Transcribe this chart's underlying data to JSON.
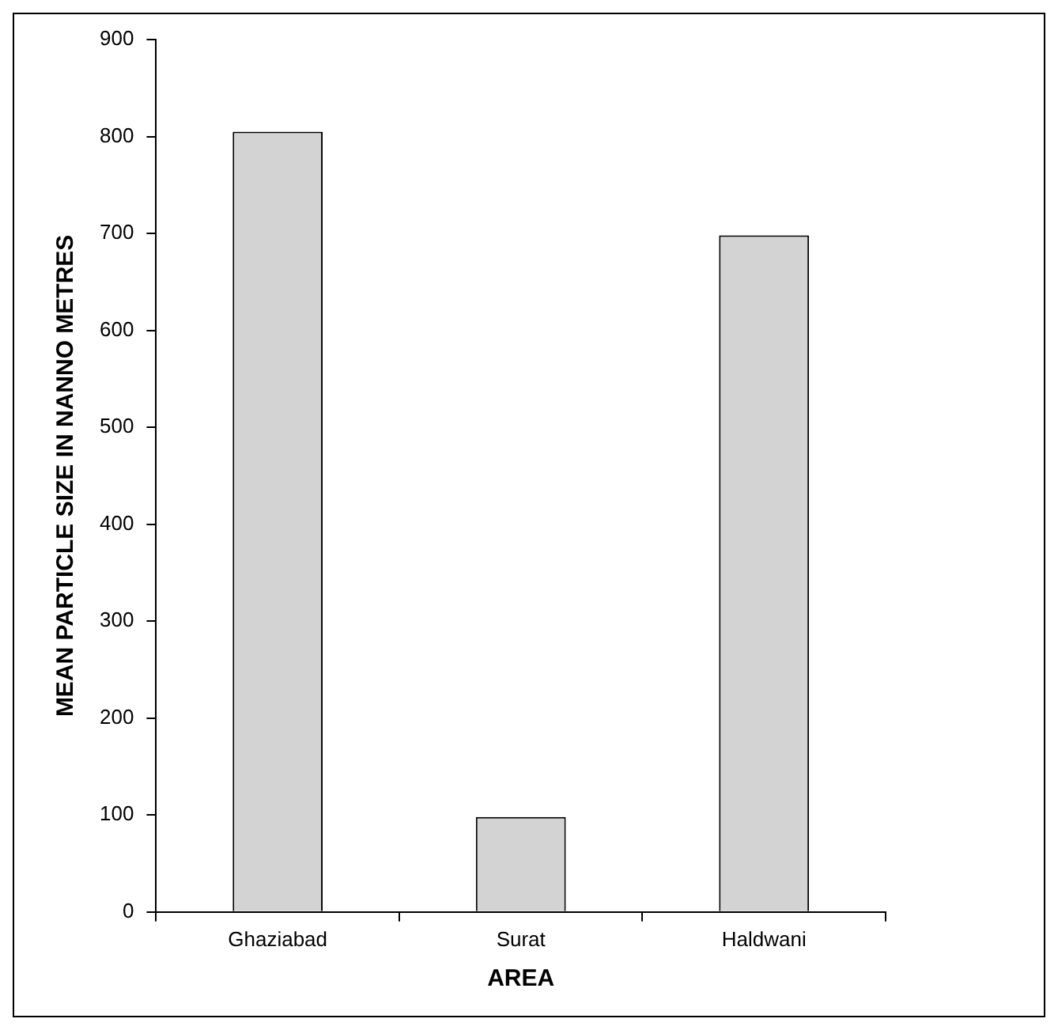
{
  "chart_data": {
    "type": "bar",
    "xlabel": "AREA",
    "ylabel": "MEAN PARTICLE SIZE IN NANNO METRES",
    "categories": [
      "Ghaziabad",
      "Surat",
      "Haldwani"
    ],
    "values": [
      805,
      98,
      698
    ],
    "color": "#d3d3d3",
    "ylim": [
      0,
      900
    ],
    "yticks": [
      0,
      100,
      200,
      300,
      400,
      500,
      600,
      700,
      800,
      900
    ],
    "grid": false,
    "legend": false
  }
}
